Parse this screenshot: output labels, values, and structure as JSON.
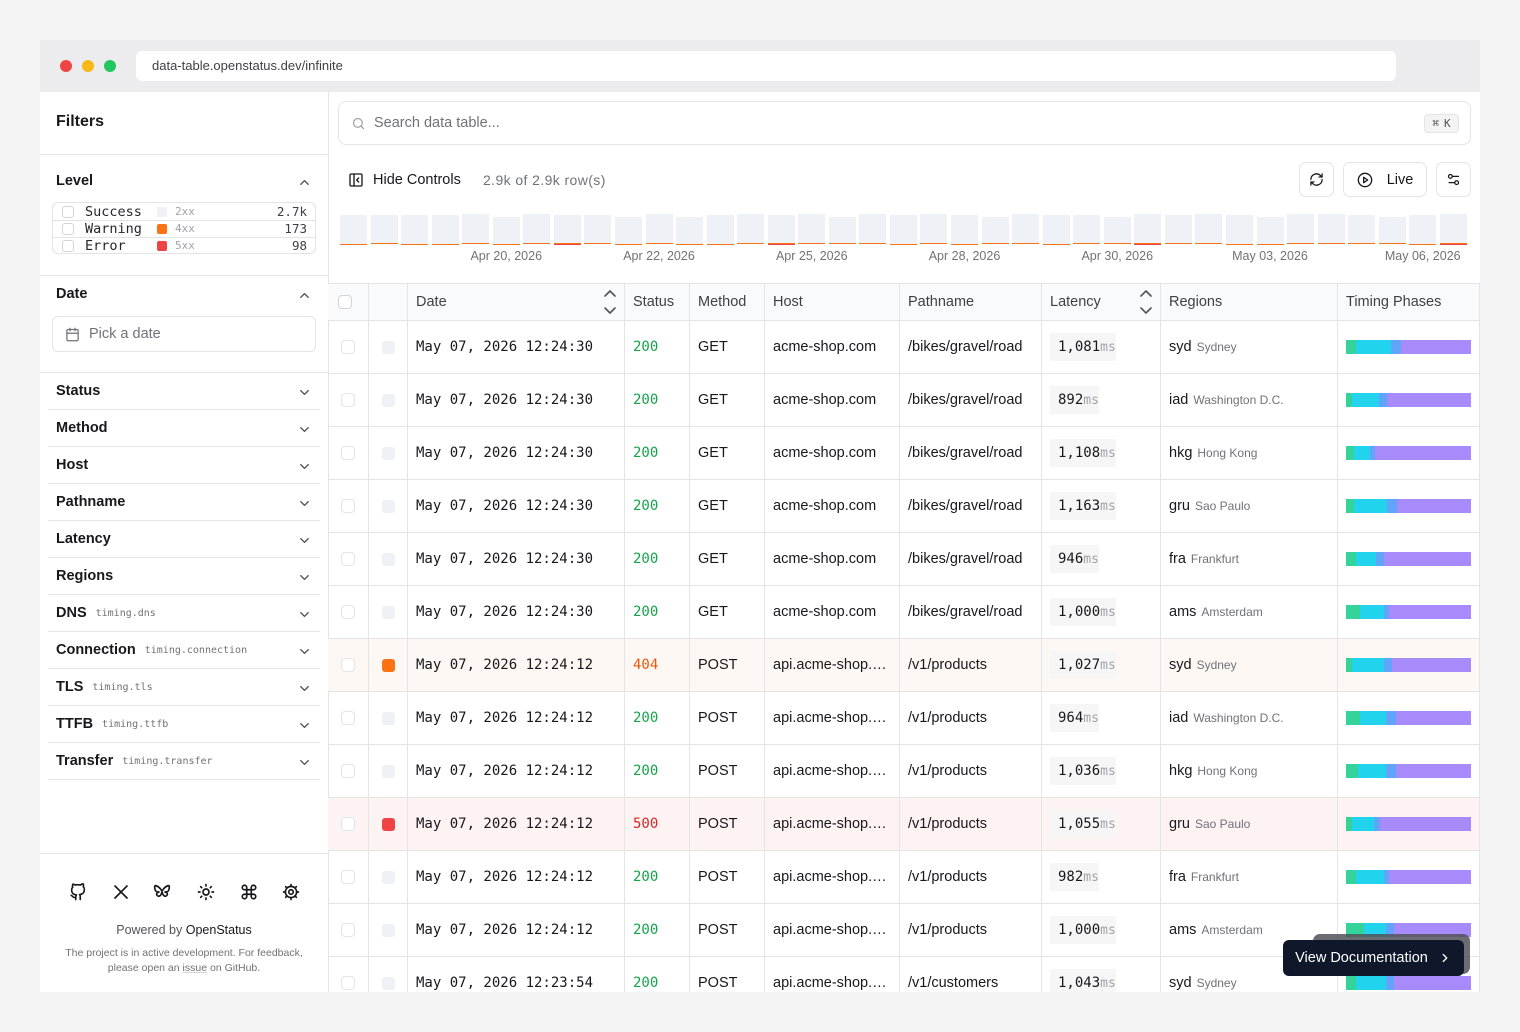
{
  "browser": {
    "url": "data-table.openstatus.dev/infinite"
  },
  "sidebar": {
    "title": "Filters",
    "level": {
      "title": "Level",
      "options": [
        {
          "label": "Success",
          "code": "2xx",
          "count": "2.7k",
          "color": "#eef1f5"
        },
        {
          "label": "Warning",
          "code": "4xx",
          "count": "173",
          "color": "#f97316"
        },
        {
          "label": "Error",
          "code": "5xx",
          "count": "98",
          "color": "#ef4444"
        }
      ]
    },
    "date": {
      "title": "Date",
      "placeholder": "Pick a date"
    },
    "filters": [
      {
        "label": "Status"
      },
      {
        "label": "Method"
      },
      {
        "label": "Host"
      },
      {
        "label": "Pathname"
      },
      {
        "label": "Latency"
      },
      {
        "label": "Regions"
      },
      {
        "label": "DNS",
        "key": "timing.dns"
      },
      {
        "label": "Connection",
        "key": "timing.connection"
      },
      {
        "label": "TLS",
        "key": "timing.tls"
      },
      {
        "label": "TTFB",
        "key": "timing.ttfb"
      },
      {
        "label": "Transfer",
        "key": "timing.transfer"
      }
    ],
    "footer": {
      "powered_by": "Powered by",
      "brand": "OpenStatus",
      "note_start": "The project is in active development. For feedback, please open an",
      "note_link": "issue",
      "note_end": "on GitHub."
    }
  },
  "search": {
    "placeholder": "Search data table...",
    "shortcut": [
      "⌘",
      "K"
    ]
  },
  "toolbar": {
    "hide_controls": "Hide Controls",
    "row_count": "2.9k of 2.9k row(s)",
    "live": "Live"
  },
  "timeline": {
    "type": "bar",
    "categories": [
      null,
      null,
      null,
      null,
      null,
      "Apr 20, 2026",
      null,
      null,
      null,
      null,
      "Apr 22, 2026",
      null,
      null,
      null,
      null,
      "Apr 25, 2026",
      null,
      null,
      null,
      null,
      "Apr 28, 2026",
      null,
      null,
      null,
      null,
      "Apr 30, 2026",
      null,
      null,
      null,
      null,
      "May 03, 2026",
      null,
      null,
      null,
      null,
      "May 06, 2026",
      null
    ],
    "series": [
      {
        "color": "#eef1f5",
        "values": [
          78,
          78,
          78,
          78,
          78,
          72,
          78,
          78,
          78,
          72,
          78,
          72,
          78,
          78,
          78,
          78,
          72,
          78,
          78,
          78,
          78,
          72,
          78,
          78,
          78,
          72,
          78,
          78,
          78,
          78,
          72,
          78,
          78,
          78,
          72,
          78,
          78
        ]
      },
      {
        "color": "#f97316",
        "values": [
          1,
          2,
          1,
          1,
          3,
          1,
          3,
          1,
          2,
          1,
          3,
          1,
          1,
          3,
          1,
          3,
          2,
          3,
          1,
          3,
          1,
          2,
          3,
          1,
          2,
          3,
          3,
          2,
          3,
          1,
          1,
          3,
          4,
          2,
          2,
          1,
          2
        ]
      },
      {
        "color": "#ef4444",
        "values": [
          0,
          0,
          0,
          0,
          0,
          0,
          0,
          1,
          0,
          0,
          0,
          0,
          0,
          0,
          1,
          0,
          0,
          0,
          0,
          0,
          0,
          0,
          0,
          0,
          0,
          0,
          1,
          0,
          0,
          0,
          0,
          0,
          0,
          0,
          0,
          0,
          1
        ]
      }
    ]
  },
  "table": {
    "columns": [
      "Date",
      "Status",
      "Method",
      "Host",
      "Pathname",
      "Latency",
      "Regions",
      "Timing Phases"
    ],
    "latency_unit": "ms",
    "rows": [
      {
        "date": "May 07, 2026 12:24:30",
        "status": 200,
        "method": "GET",
        "host": "acme-shop.com",
        "path": "/bikes/gravel/road",
        "latency": "1,081",
        "region": "syd",
        "region_name": "Sydney",
        "phases": [
          10,
          35,
          10,
          70
        ]
      },
      {
        "date": "May 07, 2026 12:24:30",
        "status": 200,
        "method": "GET",
        "host": "acme-shop.com",
        "path": "/bikes/gravel/road",
        "latency": "892",
        "region": "iad",
        "region_name": "Washington D.C.",
        "phases": [
          6,
          27,
          8,
          84
        ]
      },
      {
        "date": "May 07, 2026 12:24:30",
        "status": 200,
        "method": "GET",
        "host": "acme-shop.com",
        "path": "/bikes/gravel/road",
        "latency": "1,108",
        "region": "hkg",
        "region_name": "Hong Kong",
        "phases": [
          8,
          16,
          5,
          96
        ]
      },
      {
        "date": "May 07, 2026 12:24:30",
        "status": 200,
        "method": "GET",
        "host": "acme-shop.com",
        "path": "/bikes/gravel/road",
        "latency": "1,163",
        "region": "gru",
        "region_name": "Sao Paulo",
        "phases": [
          8,
          33,
          10,
          74
        ]
      },
      {
        "date": "May 07, 2026 12:24:30",
        "status": 200,
        "method": "GET",
        "host": "acme-shop.com",
        "path": "/bikes/gravel/road",
        "latency": "946",
        "region": "fra",
        "region_name": "Frankfurt",
        "phases": [
          10,
          20,
          8,
          87
        ]
      },
      {
        "date": "May 07, 2026 12:24:30",
        "status": 200,
        "method": "GET",
        "host": "acme-shop.com",
        "path": "/bikes/gravel/road",
        "latency": "1,000",
        "region": "ams",
        "region_name": "Amsterdam",
        "phases": [
          14,
          24,
          5,
          82
        ]
      },
      {
        "date": "May 07, 2026 12:24:12",
        "status": 404,
        "method": "POST",
        "host": "api.acme-shop.com",
        "path": "/v1/products",
        "latency": "1,027",
        "region": "syd",
        "region_name": "Sydney",
        "phases": [
          6,
          32,
          8,
          79
        ]
      },
      {
        "date": "May 07, 2026 12:24:12",
        "status": 200,
        "method": "POST",
        "host": "api.acme-shop.com",
        "path": "/v1/products",
        "latency": "964",
        "region": "iad",
        "region_name": "Washington D.C.",
        "phases": [
          14,
          26,
          10,
          75
        ]
      },
      {
        "date": "May 07, 2026 12:24:12",
        "status": 200,
        "method": "POST",
        "host": "api.acme-shop.com",
        "path": "/v1/products",
        "latency": "1,036",
        "region": "hkg",
        "region_name": "Hong Kong",
        "phases": [
          12,
          28,
          10,
          75
        ]
      },
      {
        "date": "May 07, 2026 12:24:12",
        "status": 500,
        "method": "POST",
        "host": "api.acme-shop.com",
        "path": "/v1/products",
        "latency": "1,055",
        "region": "gru",
        "region_name": "Sao Paulo",
        "phases": [
          6,
          22,
          6,
          91
        ]
      },
      {
        "date": "May 07, 2026 12:24:12",
        "status": 200,
        "method": "POST",
        "host": "api.acme-shop.com",
        "path": "/v1/products",
        "latency": "982",
        "region": "fra",
        "region_name": "Frankfurt",
        "phases": [
          10,
          28,
          5,
          82
        ]
      },
      {
        "date": "May 07, 2026 12:24:12",
        "status": 200,
        "method": "POST",
        "host": "api.acme-shop.com",
        "path": "/v1/products",
        "latency": "1,000",
        "region": "ams",
        "region_name": "Amsterdam",
        "phases": [
          18,
          22,
          8,
          77
        ]
      },
      {
        "date": "May 07, 2026 12:23:54",
        "status": 200,
        "method": "POST",
        "host": "api.acme-shop.com",
        "path": "/v1/customers",
        "latency": "1,043",
        "region": "syd",
        "region_name": "Sydney",
        "phases": [
          10,
          30,
          8,
          77
        ]
      }
    ]
  },
  "cta": {
    "label": "View Documentation"
  }
}
